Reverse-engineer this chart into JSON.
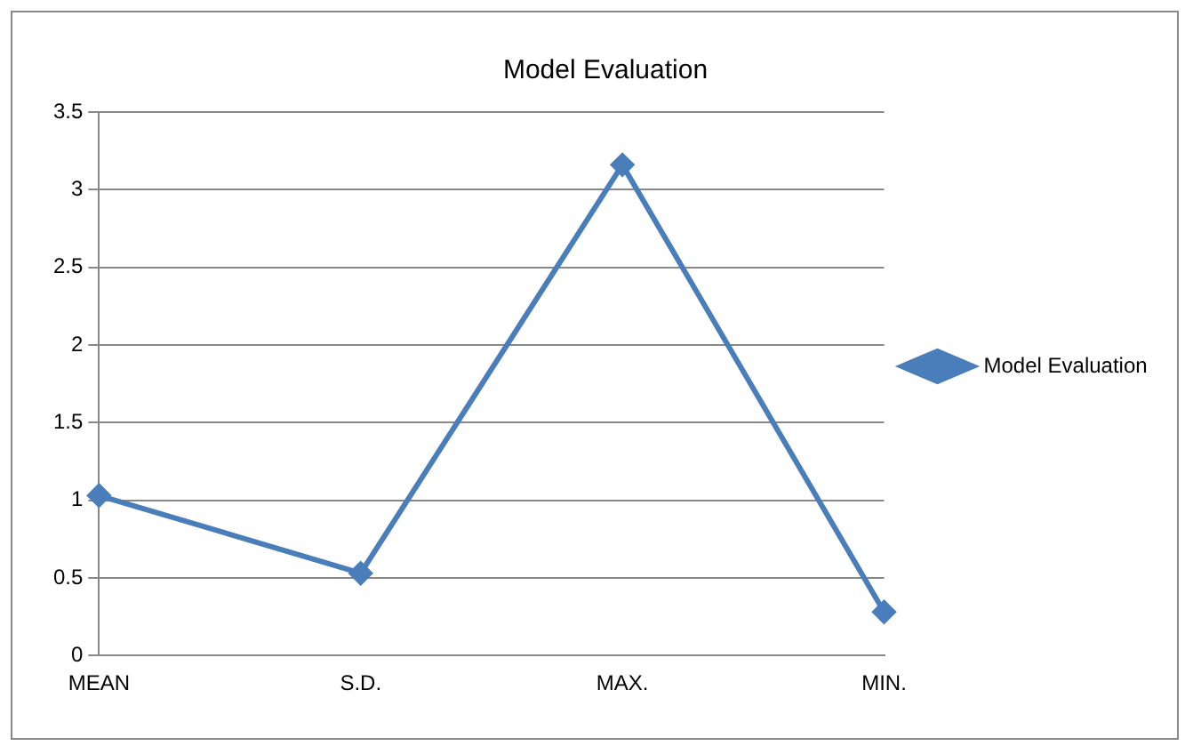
{
  "chart_data": {
    "type": "line",
    "title": "Model Evaluation",
    "categories": [
      "MEAN",
      "S.D.",
      "MAX.",
      "MIN."
    ],
    "series": [
      {
        "name": "Model Evaluation",
        "color": "#4a7ebb",
        "values": [
          1.03,
          0.53,
          3.16,
          0.28
        ]
      }
    ],
    "ylim": [
      0,
      3.5
    ],
    "yticks": [
      0,
      0.5,
      1,
      1.5,
      2,
      2.5,
      3,
      3.5
    ],
    "grid": "y",
    "legend": "right",
    "marker": "diamond",
    "line_style": "solid"
  }
}
